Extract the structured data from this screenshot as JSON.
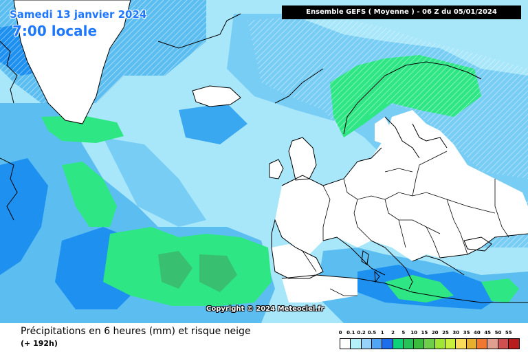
{
  "header": {
    "date": "Samedi 13 janvier 2024",
    "local_time": "7:00 locale",
    "run_info": "Ensemble GEFS ( Moyenne ) - 06 Z du 05/01/2024"
  },
  "copyright": "Copyright © 2024 Meteociel.fr",
  "footer": {
    "caption": "Précipitations en 6 heures (mm) et risque neige",
    "lead_time": "(+ 192h)"
  },
  "legend": {
    "units": "mm",
    "thresholds": [
      "0",
      "0.1",
      "0.2",
      "0.5",
      "1",
      "2",
      "5",
      "10",
      "15",
      "20",
      "25",
      "30",
      "35",
      "40",
      "45",
      "50",
      "55"
    ],
    "colors": [
      "#ffffff",
      "#b4f0fa",
      "#96d2fa",
      "#50a5f5",
      "#1e6eeb",
      "#0fd278",
      "#26c257",
      "#3cbc3c",
      "#6fce49",
      "#a0e632",
      "#c8f03c",
      "#fadc5a",
      "#e6af2d",
      "#f07830",
      "#e0a090",
      "#d05050",
      "#b81d1d"
    ]
  },
  "map_colors": {
    "ocean_light": "#a8e6fa",
    "ocean_mid": "#5cbef0",
    "ocean_dark": "#1e90f0",
    "rain_green": "#2ee684",
    "rain_green_dark": "#38c070",
    "land_dry": "#ffffff",
    "borders": "#000000"
  }
}
